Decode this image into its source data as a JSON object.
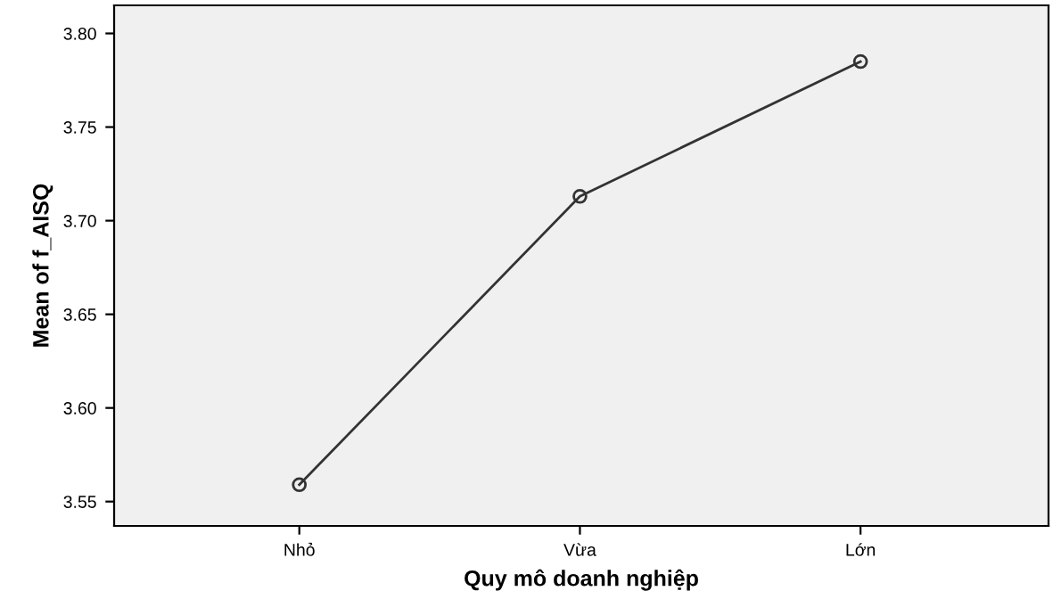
{
  "chart_data": {
    "type": "line",
    "xlabel": "Quy mô doanh nghiệp",
    "ylabel": "Mean of f_AISQ",
    "categories": [
      "Nhỏ",
      "Vừa",
      "Lớn"
    ],
    "series": [
      {
        "color": "#333333",
        "values": [
          3.559,
          3.713,
          3.785
        ]
      }
    ],
    "ylim": [
      3.537,
      3.815
    ],
    "yticks": [
      {
        "value": 3.55,
        "label": "3.55"
      },
      {
        "value": 3.6,
        "label": "3.60"
      },
      {
        "value": 3.65,
        "label": "3.65"
      },
      {
        "value": 3.7,
        "label": "3.70"
      },
      {
        "value": 3.75,
        "label": "3.75"
      },
      {
        "value": 3.8,
        "label": "3.80"
      }
    ],
    "marker": "circle",
    "line_style": "solid",
    "grid": false,
    "legend": false
  }
}
